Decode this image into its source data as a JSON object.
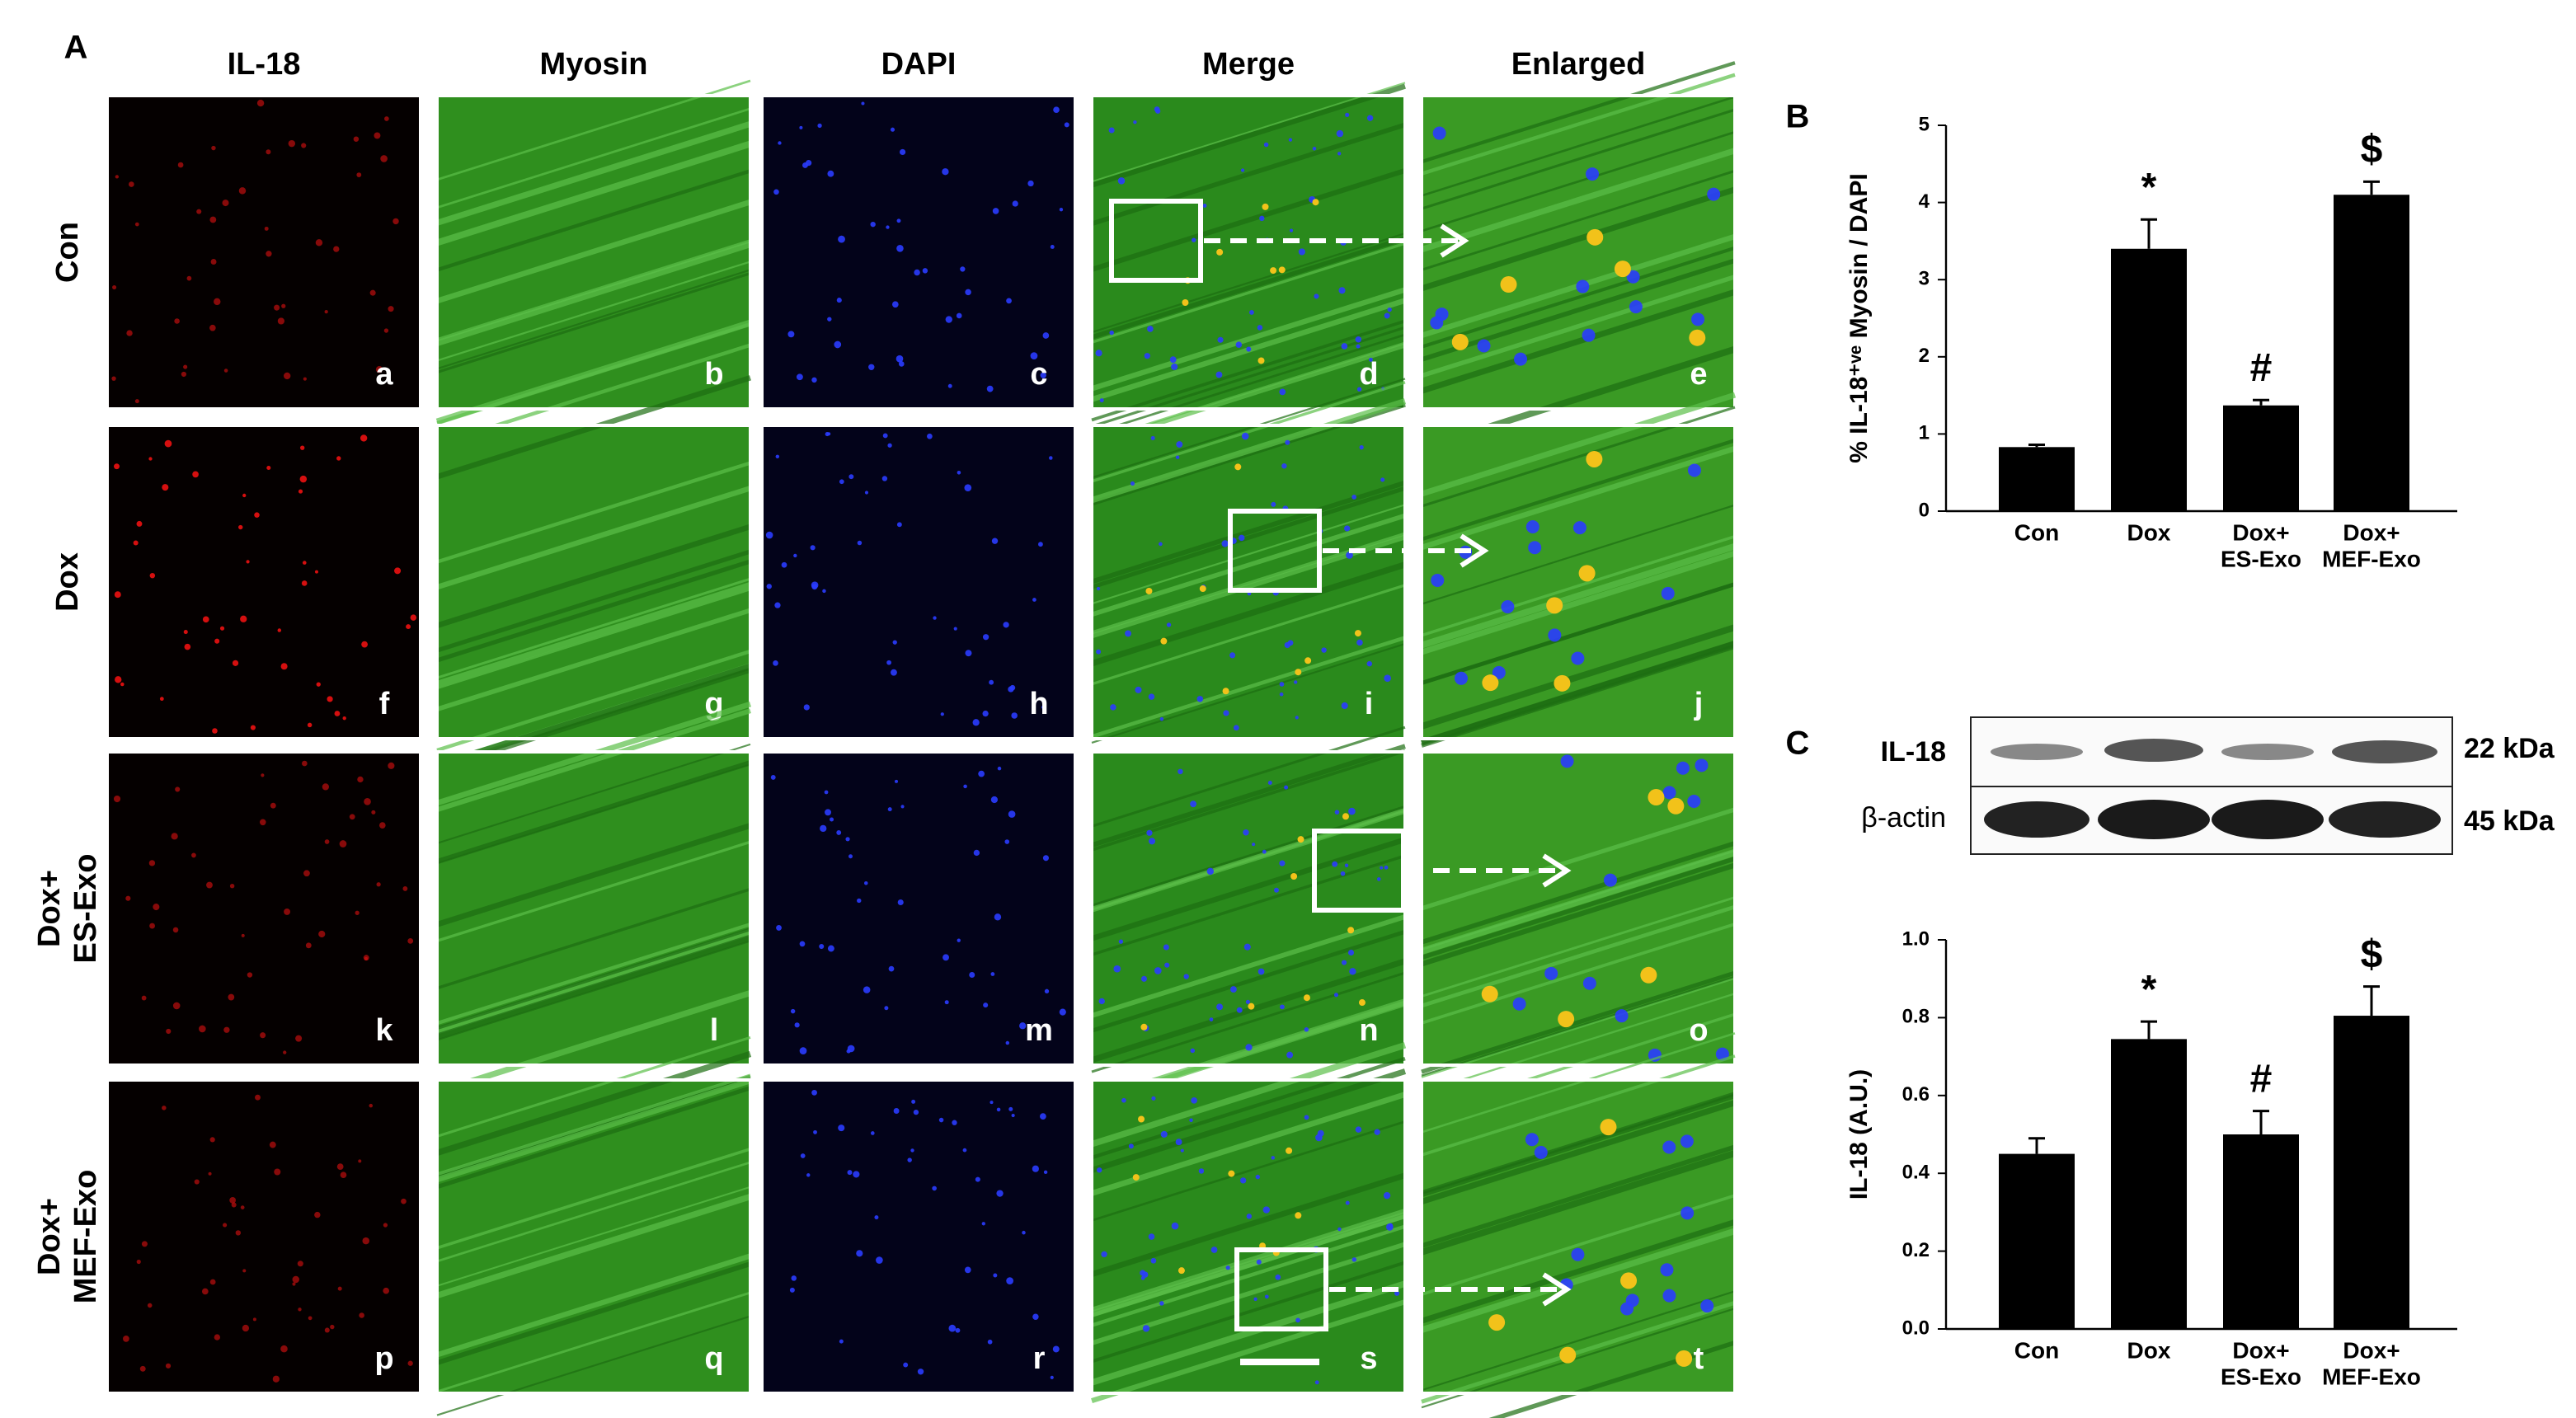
{
  "panel_labels": [
    "A",
    "B",
    "C"
  ],
  "columns": [
    "IL-18",
    "Myosin",
    "DAPI",
    "Merge",
    "Enlarged"
  ],
  "rows": [
    [
      "Con"
    ],
    [
      "Dox"
    ],
    [
      "Dox+",
      "ES-Exo"
    ],
    [
      "Dox+",
      "MEF-Exo"
    ]
  ],
  "subpanel_letters": [
    "a",
    "b",
    "c",
    "d",
    "e",
    "f",
    "g",
    "h",
    "i",
    "j",
    "k",
    "l",
    "m",
    "n",
    "o",
    "p",
    "q",
    "r",
    "s",
    "t"
  ],
  "blot": {
    "bands": [
      "IL-18",
      "β-actin"
    ],
    "sizes": [
      "22 kDa",
      "45 kDa"
    ]
  },
  "chart_data": [
    {
      "type": "bar",
      "ylabel": "% IL-18⁺ᵛᵉ Myosin / DAPI",
      "categories": [
        [
          "Con"
        ],
        [
          "Dox"
        ],
        [
          "Dox+",
          "ES-Exo"
        ],
        [
          "Dox+",
          "MEF-Exo"
        ]
      ],
      "values": [
        0.83,
        3.4,
        1.37,
        4.1
      ],
      "errors": [
        0.03,
        0.38,
        0.07,
        0.17
      ],
      "annotations": [
        null,
        "*",
        "#",
        "$"
      ],
      "color": "#000000",
      "ylim": [
        0,
        5
      ],
      "yticks": [
        0,
        1,
        2,
        3,
        4,
        5
      ]
    },
    {
      "type": "bar",
      "ylabel": "IL-18 (A.U.)",
      "categories": [
        [
          "Con"
        ],
        [
          "Dox"
        ],
        [
          "Dox+",
          "ES-Exo"
        ],
        [
          "Dox+",
          "MEF-Exo"
        ]
      ],
      "values": [
        0.45,
        0.745,
        0.5,
        0.805
      ],
      "errors": [
        0.04,
        0.045,
        0.06,
        0.075
      ],
      "annotations": [
        null,
        "*",
        "#",
        "$"
      ],
      "color": "#000000",
      "ylim": [
        0,
        1
      ],
      "yticks": [
        {
          "value": 0,
          "label": "0.0"
        },
        {
          "value": 0.2,
          "label": "0.2"
        },
        {
          "value": 0.4,
          "label": "0.4"
        },
        {
          "value": 0.6,
          "label": "0.6"
        },
        {
          "value": 0.8,
          "label": "0.8"
        },
        {
          "value": 1,
          "label": "1.0"
        }
      ]
    }
  ]
}
